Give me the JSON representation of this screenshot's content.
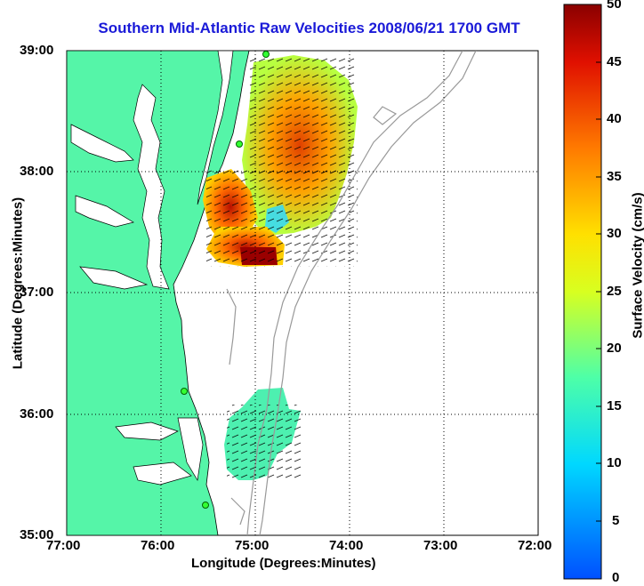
{
  "title": "Southern Mid-Atlantic Raw Velocities 2008/06/21 1700 GMT",
  "xlabel": "Longitude (Degrees:Minutes)",
  "ylabel": "Latitude (Degrees:Minutes)",
  "x_ticks": [
    "77:00",
    "76:00",
    "75:00",
    "74:00",
    "73:00",
    "72:00"
  ],
  "y_ticks": [
    "39:00",
    "38:00",
    "37:00",
    "36:00",
    "35:00"
  ],
  "colorbar": {
    "label": "Surface Velocity (cm/s)",
    "ticks": [
      "50",
      "45",
      "40",
      "35",
      "30",
      "25",
      "20",
      "15",
      "10",
      "5",
      "0"
    ]
  },
  "colors": {
    "land": "#55f5a8",
    "title": "#1a1ad8",
    "bathymetry": "#999999"
  }
}
